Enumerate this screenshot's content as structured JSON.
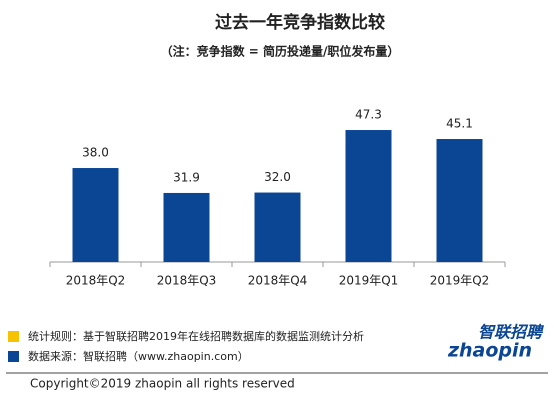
{
  "chart_data": {
    "type": "bar",
    "title": "过去一年竞争指数比较",
    "subtitle": "（注：竞争指数 = 简历投递量/职位发布量）",
    "categories": [
      "2018年Q2",
      "2018年Q3",
      "2018年Q4",
      "2019年Q1",
      "2019年Q2"
    ],
    "values": [
      38.0,
      31.9,
      32.0,
      47.3,
      45.1
    ],
    "value_labels": [
      "38.0",
      "31.9",
      "32.0",
      "47.3",
      "45.1"
    ],
    "color": "#0b4694",
    "ylim": [
      15,
      50
    ],
    "notes": [
      {
        "text": "统计规则：基于智联招聘2019年在线招聘数据库的数据监测统计分析",
        "color": "#f7c300"
      },
      {
        "text": "数据来源：智联招聘（www.zhaopin.com）",
        "color": "#0b4694"
      }
    ],
    "copyright": "Copyright©2019 zhaopin all rights reserved",
    "logo": {
      "name": "智联招聘",
      "domain": "zhaopin"
    }
  }
}
